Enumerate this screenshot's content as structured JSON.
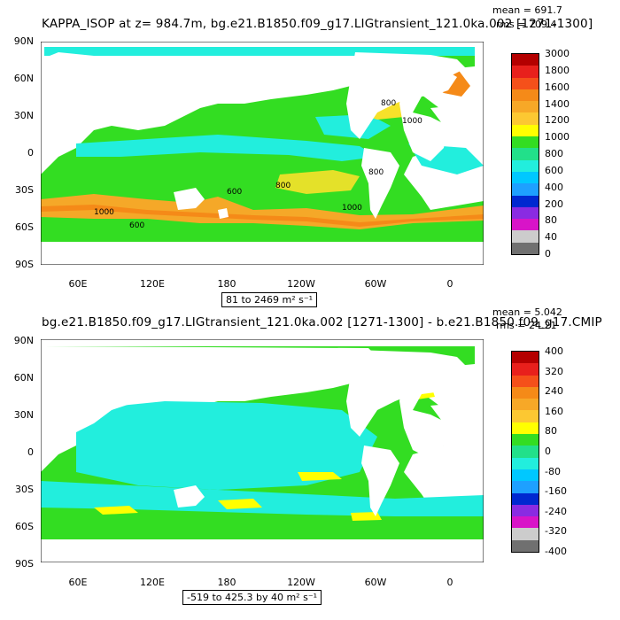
{
  "panels": [
    {
      "title": "KAPPA_ISOP at z= 984.7m, bg.e21.B1850.f09_g17.LIGtransient_121.0ka.002 [1271-1300]",
      "stats": {
        "mean": "mean = 691.7",
        "rms": "rms = 709.4"
      },
      "range_label": "81 to 2469 m² s⁻¹",
      "colorbar": {
        "labels": [
          "3000",
          "1800",
          "1600",
          "1400",
          "1200",
          "1000",
          "800",
          "600",
          "400",
          "200",
          "80",
          "40",
          "0"
        ],
        "colors": [
          "#b40000",
          "#e8201c",
          "#f5501a",
          "#f58a18",
          "#f7a827",
          "#fcc832",
          "#ffff00",
          "#33dd22",
          "#22e08a",
          "#22eedd",
          "#00c8ff",
          "#1ea0ff",
          "#0028d0",
          "#8a2be2",
          "#d814c8",
          "#cccccc",
          "#707070"
        ]
      },
      "contour_labels": [
        "800",
        "1000",
        "800",
        "1000",
        "800",
        "1000",
        "600",
        "600"
      ]
    },
    {
      "title": "bg.e21.B1850.f09_g17.LIGtransient_121.0ka.002 [1271-1300] - b.e21.B1850.f09_g17.CMIP",
      "stats": {
        "mean": "mean = 5.042",
        "rms": "rms = 24.21"
      },
      "range_label": "-519 to 425.3 by 40 m² s⁻¹",
      "colorbar": {
        "labels": [
          "400",
          "320",
          "240",
          "160",
          "80",
          "0",
          "-80",
          "-160",
          "-240",
          "-320",
          "-400"
        ],
        "colors": [
          "#b40000",
          "#e8201c",
          "#f5501a",
          "#f58a18",
          "#f7a827",
          "#fcc832",
          "#ffff00",
          "#33dd22",
          "#22e08a",
          "#22eedd",
          "#00c8ff",
          "#1ea0ff",
          "#0028d0",
          "#8a2be2",
          "#d814c8",
          "#cccccc",
          "#707070"
        ]
      }
    }
  ],
  "lat_labels": [
    "90N",
    "60N",
    "30N",
    "0",
    "30S",
    "60S",
    "90S"
  ],
  "lon_labels": [
    "60E",
    "120E",
    "180",
    "120W",
    "60W",
    "0"
  ],
  "colors": {
    "land": "#ffffff",
    "ocean_main": "#33dd22",
    "ocean_low": "#22eedd",
    "ocean_high": "#f5a828"
  }
}
